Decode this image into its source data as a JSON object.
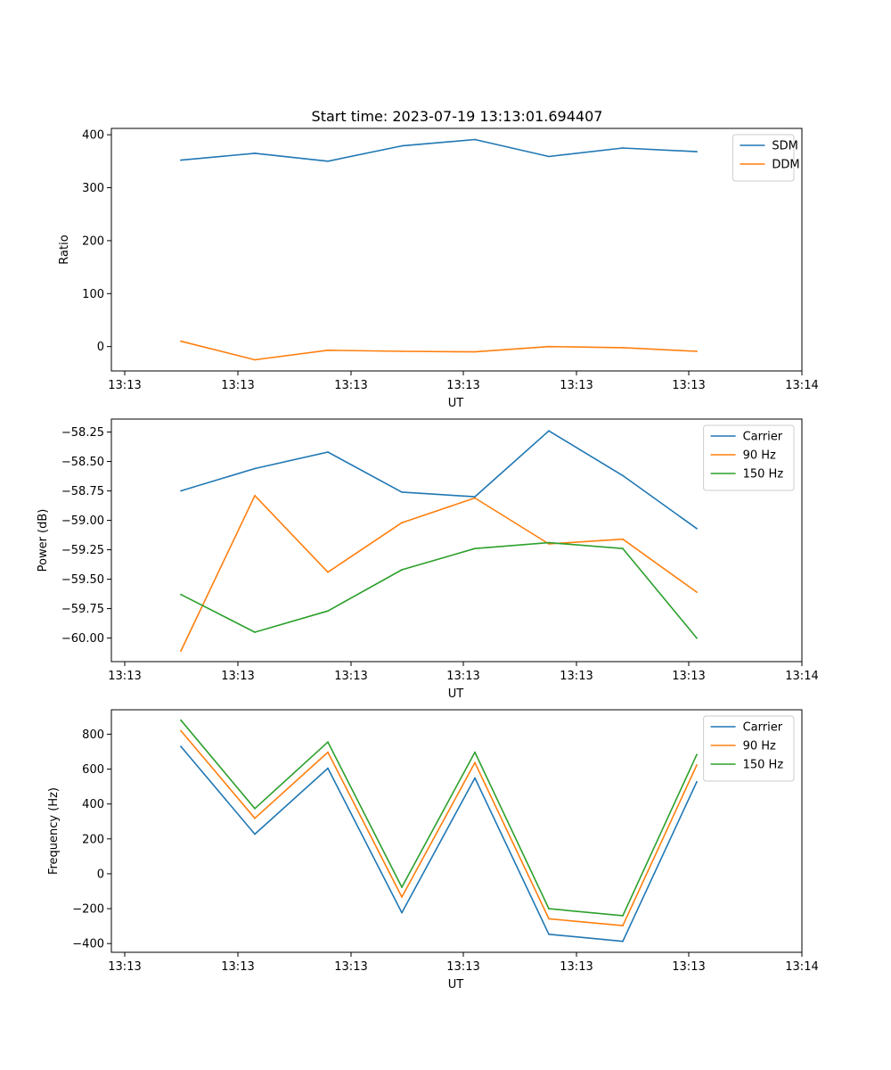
{
  "title": "Start time: 2023-07-19 13:13:01.694407",
  "chart_data": [
    {
      "type": "line",
      "xlabel": "UT",
      "ylabel": "Ratio",
      "x_tick_labels": [
        "13:13",
        "13:13",
        "13:13",
        "13:13",
        "13:13",
        "13:13",
        "13:14"
      ],
      "ylim": [
        -46,
        412
      ],
      "yticks": [
        0,
        100,
        200,
        300,
        400
      ],
      "ytick_labels": [
        "0",
        "100",
        "200",
        "300",
        "400"
      ],
      "legend_position": "top-right",
      "series": [
        {
          "name": "SDM",
          "color": "#1f77b4",
          "values": [
            352,
            365,
            350,
            379,
            391,
            359,
            375,
            368
          ]
        },
        {
          "name": "DDM",
          "color": "#ff7f0e",
          "values": [
            10,
            -25,
            -7,
            -9,
            -10,
            0,
            -2,
            -9
          ]
        }
      ]
    },
    {
      "type": "line",
      "xlabel": "UT",
      "ylabel": "Power (dB)",
      "x_tick_labels": [
        "13:13",
        "13:13",
        "13:13",
        "13:13",
        "13:13",
        "13:13",
        "13:14"
      ],
      "ylim": [
        -60.2,
        -58.14
      ],
      "yticks": [
        -58.25,
        -58.5,
        -58.75,
        -59.0,
        -59.25,
        -59.5,
        -59.75,
        -60.0
      ],
      "ytick_labels": [
        "−58.25",
        "−58.50",
        "−58.75",
        "−59.00",
        "−59.25",
        "−59.50",
        "−59.75",
        "−60.00"
      ],
      "legend_position": "top-right",
      "series": [
        {
          "name": "Carrier",
          "color": "#1f77b4",
          "values": [
            -58.75,
            -58.56,
            -58.42,
            -58.76,
            -58.8,
            -58.24,
            -58.62,
            -59.07
          ]
        },
        {
          "name": "90 Hz",
          "color": "#ff7f0e",
          "values": [
            -60.11,
            -58.79,
            -59.44,
            -59.02,
            -58.81,
            -59.2,
            -59.16,
            -59.61
          ]
        },
        {
          "name": "150 Hz",
          "color": "#2ca02c",
          "values": [
            -59.63,
            -59.95,
            -59.77,
            -59.42,
            -59.24,
            -59.19,
            -59.24,
            -60.0
          ]
        }
      ]
    },
    {
      "type": "line",
      "xlabel": "UT",
      "ylabel": "Frequency (Hz)",
      "x_tick_labels": [
        "13:13",
        "13:13",
        "13:13",
        "13:13",
        "13:13",
        "13:13",
        "13:14"
      ],
      "ylim": [
        -450,
        940
      ],
      "yticks": [
        -400,
        -200,
        0,
        200,
        400,
        600,
        800
      ],
      "ytick_labels": [
        "−400",
        "−200",
        "0",
        "200",
        "400",
        "600",
        "800"
      ],
      "legend_position": "top-right",
      "series": [
        {
          "name": "Carrier",
          "color": "#1f77b4",
          "values": [
            730,
            227,
            605,
            -223,
            549,
            -347,
            -387,
            527
          ]
        },
        {
          "name": "90 Hz",
          "color": "#ff7f0e",
          "values": [
            820,
            318,
            697,
            -133,
            637,
            -258,
            -297,
            623
          ]
        },
        {
          "name": "150 Hz",
          "color": "#2ca02c",
          "values": [
            880,
            374,
            755,
            -77,
            697,
            -200,
            -240,
            683
          ]
        }
      ]
    }
  ]
}
